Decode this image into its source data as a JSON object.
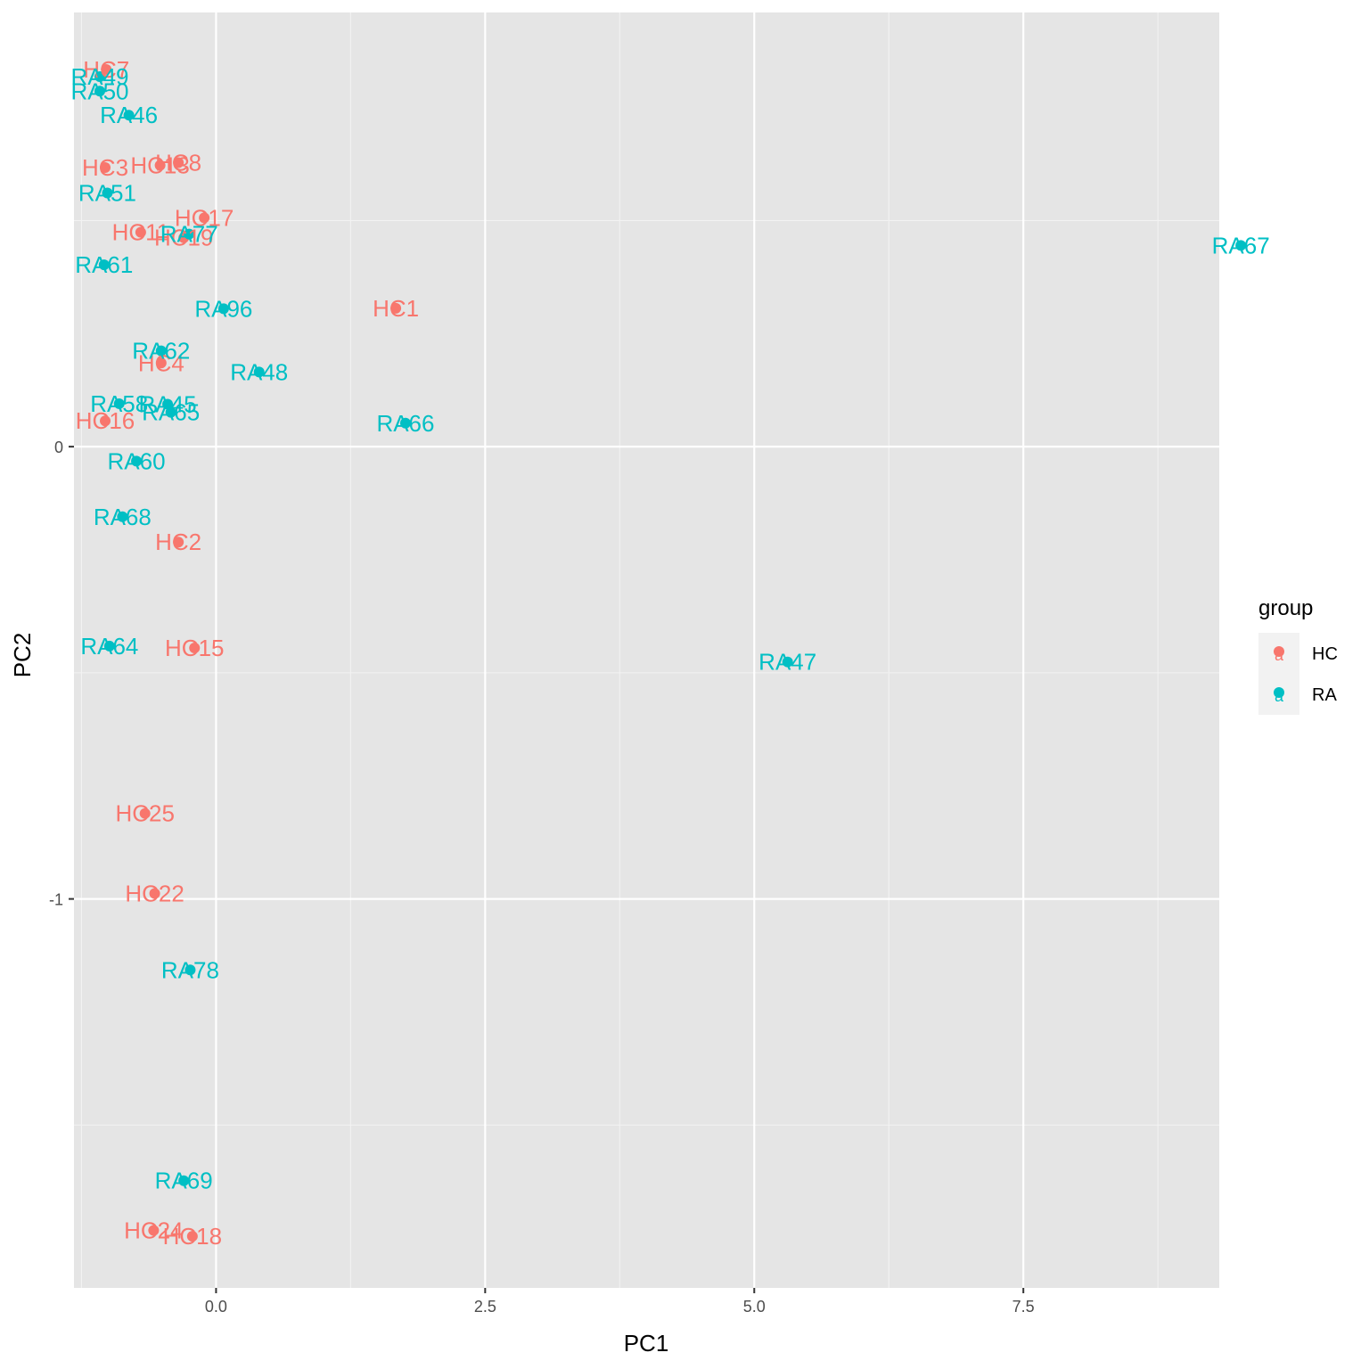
{
  "chart_data": {
    "type": "scatter",
    "xlabel": "PC1",
    "ylabel": "PC2",
    "xlim": [
      -1.32,
      9.32
    ],
    "ylim": [
      -1.86,
      0.96
    ],
    "x_ticks": [
      0.0,
      2.5,
      5.0,
      7.5
    ],
    "x_tick_labels": [
      "0.0",
      "2.5",
      "5.0",
      "7.5"
    ],
    "y_ticks": [
      -1,
      0
    ],
    "y_tick_labels": [
      "-1",
      "0"
    ],
    "grid": true,
    "legend": {
      "title": "group",
      "position": "right",
      "glyph": "a",
      "entries": [
        {
          "name": "HC",
          "color": "#F8766D"
        },
        {
          "name": "RA",
          "color": "#00BFC4"
        }
      ]
    },
    "series": [
      {
        "name": "HC",
        "color": "#F8766D",
        "points": [
          {
            "label": "HC7",
            "x": -1.02,
            "y": 0.834
          },
          {
            "label": "HC3",
            "x": -1.03,
            "y": 0.617
          },
          {
            "label": "HC8",
            "x": -0.35,
            "y": 0.628
          },
          {
            "label": "HC13",
            "x": -0.52,
            "y": 0.622
          },
          {
            "label": "HC17",
            "x": -0.11,
            "y": 0.506
          },
          {
            "label": "HC11",
            "x": -0.7,
            "y": 0.474
          },
          {
            "label": "HC19",
            "x": -0.3,
            "y": 0.462
          },
          {
            "label": "HC1",
            "x": 1.67,
            "y": 0.306
          },
          {
            "label": "HC4",
            "x": -0.51,
            "y": 0.185
          },
          {
            "label": "HC16",
            "x": -1.03,
            "y": 0.057
          },
          {
            "label": "HC2",
            "x": -0.35,
            "y": -0.211
          },
          {
            "label": "HC15",
            "x": -0.2,
            "y": -0.445
          },
          {
            "label": "HC25",
            "x": -0.66,
            "y": -0.811
          },
          {
            "label": "HC22",
            "x": -0.57,
            "y": -0.988
          },
          {
            "label": "HC24",
            "x": -0.58,
            "y": -1.733
          },
          {
            "label": "HC18",
            "x": -0.22,
            "y": -1.746
          }
        ]
      },
      {
        "name": "RA",
        "color": "#00BFC4",
        "points": [
          {
            "label": "RA49",
            "x": -1.08,
            "y": 0.818
          },
          {
            "label": "RA50",
            "x": -1.08,
            "y": 0.786
          },
          {
            "label": "RA46",
            "x": -0.81,
            "y": 0.733
          },
          {
            "label": "RA51",
            "x": -1.01,
            "y": 0.561
          },
          {
            "label": "RA77",
            "x": -0.25,
            "y": 0.47
          },
          {
            "label": "RA61",
            "x": -1.04,
            "y": 0.402
          },
          {
            "label": "RA67",
            "x": 9.52,
            "y": 0.445
          },
          {
            "label": "RA96",
            "x": 0.07,
            "y": 0.305
          },
          {
            "label": "RA62",
            "x": -0.51,
            "y": 0.212
          },
          {
            "label": "RA48",
            "x": 0.4,
            "y": 0.165
          },
          {
            "label": "RA58",
            "x": -0.9,
            "y": 0.095
          },
          {
            "label": "RA45",
            "x": -0.45,
            "y": 0.094
          },
          {
            "label": "RA65",
            "x": -0.42,
            "y": 0.076
          },
          {
            "label": "RA66",
            "x": 1.76,
            "y": 0.052
          },
          {
            "label": "RA60",
            "x": -0.74,
            "y": -0.032
          },
          {
            "label": "RA68",
            "x": -0.87,
            "y": -0.155
          },
          {
            "label": "RA64",
            "x": -0.99,
            "y": -0.441
          },
          {
            "label": "RA47",
            "x": 5.31,
            "y": -0.476
          },
          {
            "label": "RA78",
            "x": -0.24,
            "y": -1.157
          },
          {
            "label": "RA69",
            "x": -0.3,
            "y": -1.623
          }
        ]
      }
    ]
  }
}
